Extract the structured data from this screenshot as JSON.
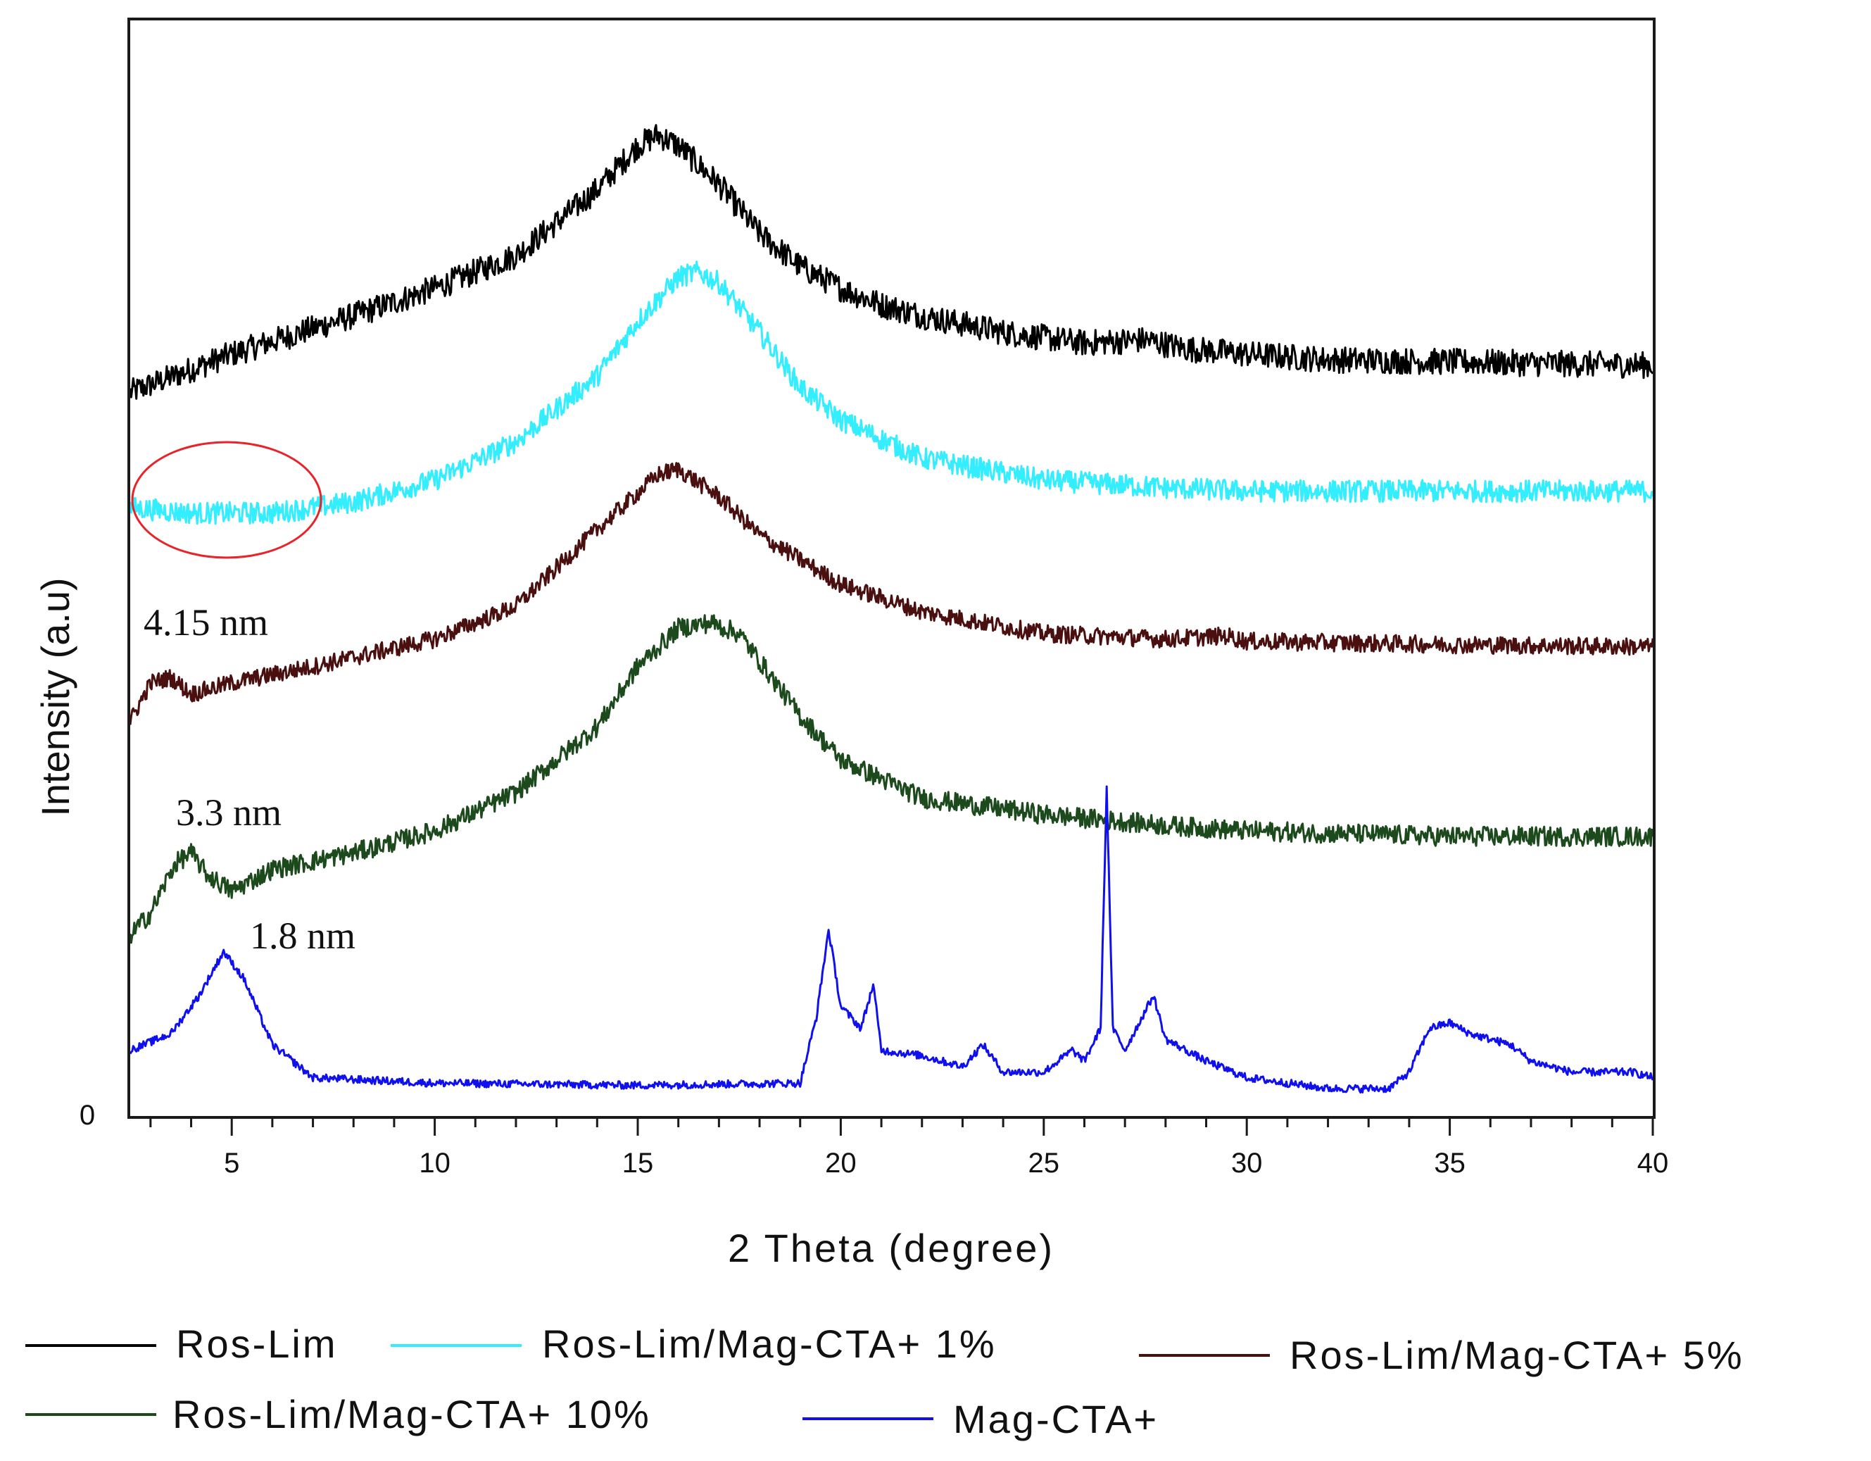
{
  "chart_data": {
    "type": "line",
    "title": "",
    "xlabel": "2 Theta (degree)",
    "ylabel": "Intensity (a.u)",
    "xlim": [
      2.5,
      40
    ],
    "ylim": [
      0,
      100
    ],
    "xticks": [
      5,
      10,
      15,
      20,
      25,
      30,
      35,
      40
    ],
    "xtick_labels": [
      "5",
      "10",
      "15",
      "20",
      "25",
      "30",
      "35",
      "40"
    ],
    "y_origin_label": "0",
    "series": [
      {
        "name": "Ros-Lim",
        "color": "#000000",
        "x": [
          2.5,
          5,
          8,
          10,
          12,
          14,
          15,
          15.5,
          16,
          17,
          18,
          19,
          20,
          21,
          22,
          24,
          26,
          27.5,
          28.5,
          30,
          32,
          35,
          38,
          40
        ],
        "y": [
          66,
          69.5,
          73,
          75.5,
          78.5,
          84.5,
          88.5,
          89.5,
          88.5,
          85,
          80.5,
          77.5,
          75.5,
          74,
          73,
          71.5,
          70.5,
          70.8,
          70,
          69.5,
          69,
          68.8,
          68.6,
          68.5
        ]
      },
      {
        "name": "Ros-Lim/Mag-CTA+ 1%",
        "color": "#33eeff",
        "x": [
          2.5,
          4,
          6,
          8,
          10,
          12,
          14,
          15,
          16,
          16.5,
          17,
          18,
          19,
          20,
          22,
          25,
          28,
          30,
          35,
          40
        ],
        "y": [
          55.5,
          55,
          55,
          56,
          58,
          61.5,
          67.5,
          72.5,
          76.5,
          77,
          76,
          71.5,
          66.5,
          63.5,
          60,
          58,
          57.3,
          57,
          57,
          57
        ]
      },
      {
        "name": "Ros-Lim/Mag-CTA+ 5%",
        "color": "#4a1010",
        "x": [
          2.5,
          3,
          3.5,
          4,
          5,
          7,
          10,
          12,
          14,
          15.5,
          16,
          17,
          18,
          20,
          22,
          25,
          28,
          29.5,
          30,
          35,
          40
        ],
        "y": [
          36,
          39.5,
          40,
          38.5,
          39.5,
          41,
          43.5,
          46.5,
          53.5,
          58.5,
          59,
          56.5,
          53,
          48.5,
          46,
          44,
          43.5,
          43.8,
          43.3,
          43,
          42.8
        ]
      },
      {
        "name": "Ros-Lim/Mag-CTA+ 10%",
        "color": "#1c4a1c",
        "x": [
          2.5,
          3,
          3.6,
          4,
          4.4,
          5,
          6,
          8,
          10,
          12,
          14,
          15,
          16,
          16.8,
          17.5,
          18,
          19,
          20,
          22,
          25,
          28,
          30,
          35,
          40
        ],
        "y": [
          16.5,
          18.5,
          23,
          24,
          22,
          20.5,
          22.5,
          24,
          26,
          29.5,
          35.5,
          41,
          44.5,
          45,
          44,
          41.5,
          36.5,
          32.5,
          29,
          27.5,
          26.5,
          26,
          25.5,
          25.5
        ]
      },
      {
        "name": "Mag-CTA+",
        "color": "#1010ee",
        "x": [
          2.5,
          3.5,
          4.2,
          4.8,
          5.3,
          6,
          7,
          10,
          15,
          19,
          19.4,
          19.7,
          20,
          20.5,
          20.8,
          21,
          22,
          23,
          23.5,
          24,
          25,
          25.7,
          26,
          26.4,
          26.55,
          26.7,
          27,
          27.7,
          28,
          29,
          30,
          32,
          33.5,
          34,
          34.5,
          35,
          35.5,
          36.5,
          37,
          38,
          39.5,
          40
        ],
        "y": [
          6,
          7.5,
          11,
          15,
          12.5,
          6.5,
          3.5,
          3,
          2.8,
          3,
          9,
          17,
          10,
          8,
          12,
          6,
          5.5,
          4.5,
          6.5,
          4,
          4,
          6,
          5,
          8,
          30,
          8,
          6,
          11,
          7,
          5,
          3.5,
          2.5,
          2.5,
          4,
          8,
          8.5,
          7.5,
          6.5,
          5,
          4,
          4,
          3.5
        ]
      }
    ],
    "annotations": [
      "4.15 nm",
      "3.3 nm",
      "1.8 nm"
    ],
    "legend": {
      "placement": "bottom",
      "entries": [
        "Ros-Lim",
        "Ros-Lim/Mag-CTA+ 1%",
        "Ros-Lim/Mag-CTA+ 5%",
        "Ros-Lim/Mag-CTA+ 10%",
        "Mag-CTA+"
      ]
    }
  }
}
